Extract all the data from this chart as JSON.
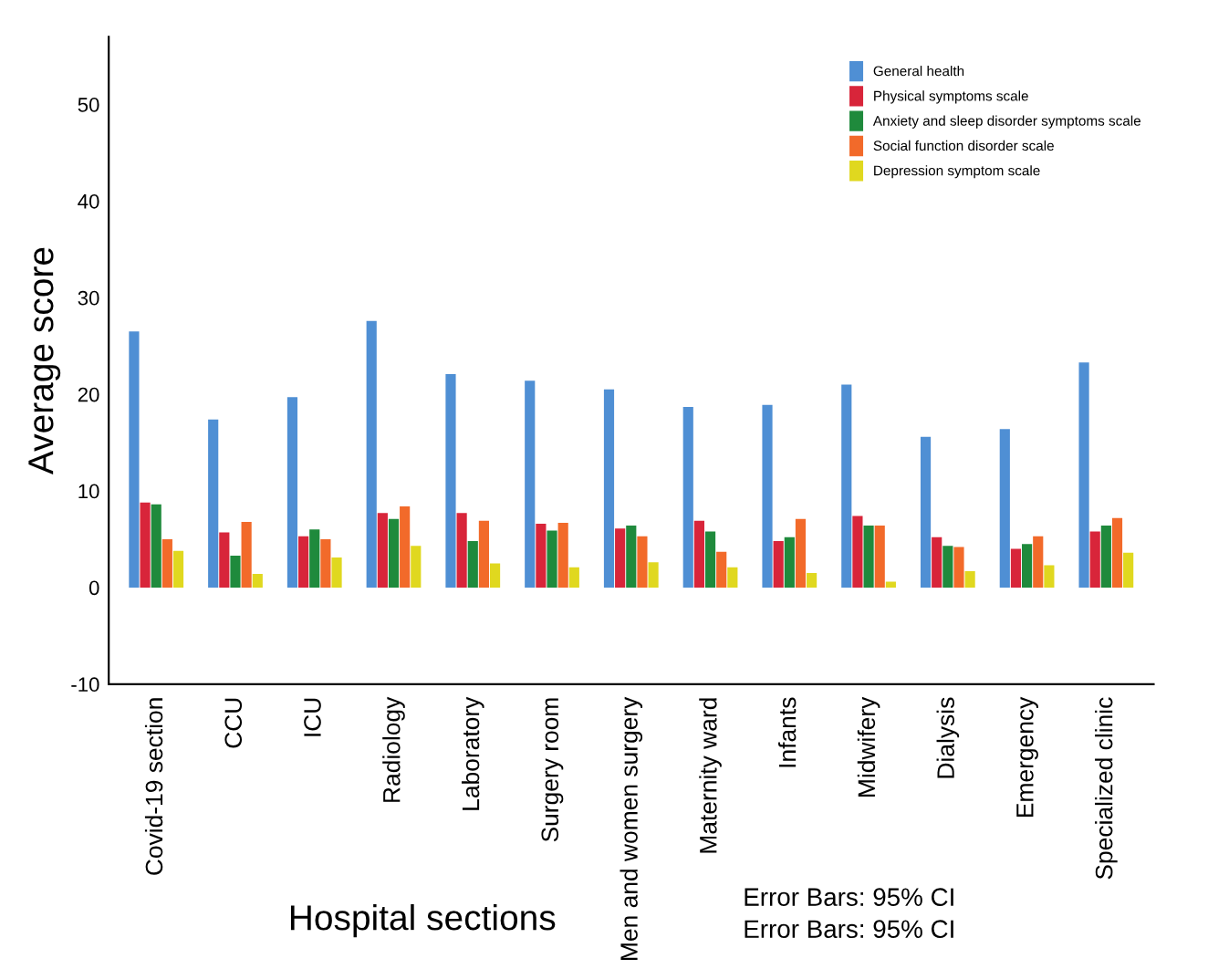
{
  "chart_data": {
    "type": "bar",
    "xlabel": "Hospital sections",
    "ylabel": "Average score",
    "categories": [
      "Covid-19 section",
      "CCU",
      "ICU",
      "Radiology",
      "Laboratory",
      "Surgery room",
      "Men and women surgery",
      "Maternity ward",
      "Infants",
      "Midwifery",
      "Dialysis",
      "Emergency",
      "Specialized clinic"
    ],
    "series": [
      {
        "name": "General health",
        "color": "#4f8fd4",
        "values": [
          26.5,
          17.4,
          19.7,
          27.6,
          22.1,
          21.4,
          20.5,
          18.7,
          18.9,
          21.0,
          15.6,
          16.4,
          23.3
        ]
      },
      {
        "name": "Physical symptoms scale",
        "color": "#d8253a",
        "values": [
          8.8,
          5.7,
          5.3,
          7.7,
          7.7,
          6.6,
          6.1,
          6.9,
          4.8,
          7.4,
          5.2,
          4.0,
          5.8
        ]
      },
      {
        "name": "Anxiety and sleep disorder symptoms scale",
        "color": "#1f8a3c",
        "values": [
          8.6,
          3.3,
          6.0,
          7.1,
          4.8,
          5.9,
          6.4,
          5.8,
          5.2,
          6.4,
          4.3,
          4.5,
          6.4
        ]
      },
      {
        "name": "Social function disorder scale",
        "color": "#f26a2a",
        "values": [
          5.0,
          6.8,
          5.0,
          8.4,
          6.9,
          6.7,
          5.3,
          3.7,
          7.1,
          6.4,
          4.2,
          5.3,
          7.2
        ]
      },
      {
        "name": "Depression symptom scale",
        "color": "#e0d81f",
        "values": [
          3.8,
          1.4,
          3.1,
          4.3,
          2.5,
          2.1,
          2.6,
          2.1,
          1.5,
          0.6,
          1.7,
          2.3,
          3.6
        ]
      }
    ],
    "ylim": [
      -10,
      57
    ],
    "yticks": [
      -10,
      0,
      10,
      20,
      30,
      40,
      50
    ],
    "grid": false,
    "legend": "top right",
    "annotations": [
      "Error Bars: 95% CI",
      "Error Bars: 95% CI"
    ]
  }
}
